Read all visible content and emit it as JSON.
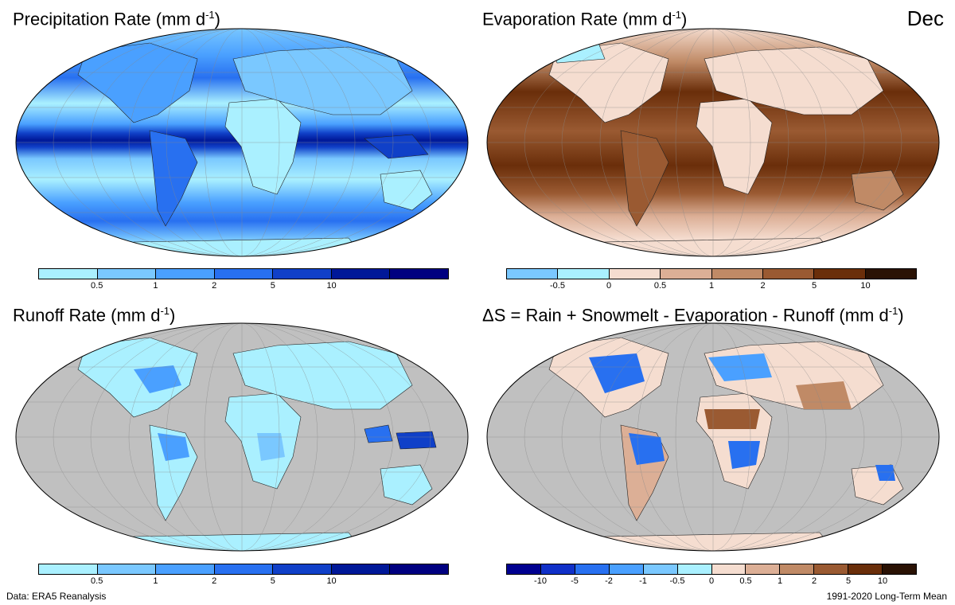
{
  "month": "Dec",
  "panels": {
    "precip": {
      "title": "Precipitation Rate (mm  d",
      "unit_exp": "-1",
      "title_end": ")",
      "colors": [
        "#aaf0ff",
        "#7ac8ff",
        "#4aa0ff",
        "#2870f0",
        "#1040c8",
        "#001898",
        "#000080"
      ],
      "ticks": [
        "0.5",
        "1",
        "2",
        "5",
        "10"
      ]
    },
    "evap": {
      "title": "Evaporation Rate (mm  d",
      "unit_exp": "-1",
      "title_end": ")",
      "colors": [
        "#7ac8ff",
        "#aaf0ff",
        "#f5ddd0",
        "#dcaf96",
        "#c08a66",
        "#9a5a32",
        "#6a2e0a",
        "#2a1204"
      ],
      "ticks": [
        "-0.5",
        "0",
        "0.5",
        "1",
        "2",
        "5",
        "10"
      ]
    },
    "runoff": {
      "title": "Runoff Rate (mm  d",
      "unit_exp": "-1",
      "title_end": ")",
      "colors": [
        "#aaf0ff",
        "#7ac8ff",
        "#4aa0ff",
        "#2870f0",
        "#1040c8",
        "#001898",
        "#000080"
      ],
      "ticks": [
        "0.5",
        "1",
        "2",
        "5",
        "10"
      ]
    },
    "storage": {
      "title": "ΔS = Rain + Snowmelt - Evaporation - Runoff (mm  d",
      "unit_exp": "-1",
      "title_end": ")",
      "colors": [
        "#000090",
        "#1030c8",
        "#2870f0",
        "#4aa0ff",
        "#7ac8ff",
        "#aaf0ff",
        "#f5ddd0",
        "#dcaf96",
        "#c08a66",
        "#9a5a32",
        "#6a2e0a",
        "#2a1204"
      ],
      "ticks": [
        "-10",
        "-5",
        "-2",
        "-1",
        "-0.5",
        "0",
        "0.5",
        "1",
        "2",
        "5",
        "10"
      ]
    }
  },
  "footer": {
    "left": "Data: ERA5 Reanalysis",
    "right": "1991-2020 Long-Term Mean"
  }
}
